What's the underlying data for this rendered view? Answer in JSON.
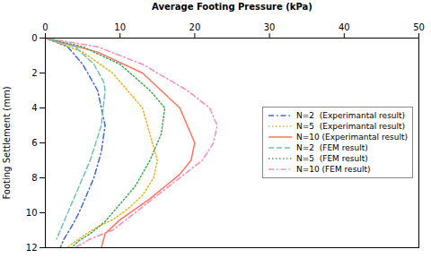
{
  "chart_data": {
    "type": "line",
    "xlabel": "Average Footing Pressure (kPa)",
    "ylabel": "Footing Settlement (mm)",
    "xlim": [
      0,
      50
    ],
    "ylim": [
      12,
      0
    ],
    "xticks": [
      0,
      10,
      20,
      30,
      40,
      50
    ],
    "yticks": [
      0,
      2,
      4,
      6,
      8,
      10,
      12
    ],
    "grid": false,
    "legend": "right",
    "series": [
      {
        "name": "N=2  (Experimantal result)",
        "line_style": "dashdot",
        "x": [
          0,
          3,
          5,
          7,
          8,
          7.5,
          6.5,
          5.5,
          4.5,
          3.5,
          2.5,
          2
        ],
        "values": [
          0,
          0.5,
          1.5,
          3,
          5,
          6.5,
          8,
          9,
          10,
          10.8,
          11.5,
          12
        ]
      },
      {
        "name": "N=5  (Experimantal result)",
        "line_style": "dotted",
        "x": [
          0,
          5,
          9,
          13,
          15,
          14.5,
          13,
          11,
          9,
          7,
          5.5,
          4.5,
          3.5,
          3
        ],
        "values": [
          0,
          0.8,
          2,
          4,
          7,
          8,
          9,
          9.8,
          10.4,
          10.8,
          11.2,
          11.5,
          11.8,
          12
        ]
      },
      {
        "name": "N=10 (Experimantal result)",
        "line_style": "solid",
        "x": [
          0,
          7,
          13,
          18,
          20,
          19.5,
          18,
          16,
          14,
          12,
          10,
          9,
          8,
          7.5
        ],
        "values": [
          0,
          0.8,
          2,
          4,
          6,
          7,
          7.8,
          8.5,
          9.2,
          9.8,
          10.4,
          10.8,
          11.2,
          12
        ]
      },
      {
        "name": "N=2  (FEM result)",
        "line_style": "dashed",
        "x": [
          0,
          4,
          6.5,
          7.8,
          8,
          7.5,
          6,
          4.5,
          3.5,
          2.5,
          2,
          1.5
        ],
        "values": [
          0,
          0.5,
          1.5,
          2.5,
          3,
          5,
          7,
          8.5,
          9.5,
          10.5,
          11,
          11.5
        ]
      },
      {
        "name": "N=5  (FEM result)",
        "line_style": "dotted",
        "x": [
          0,
          5,
          10,
          14,
          16,
          15.5,
          14,
          12,
          10,
          8,
          6,
          4.5,
          3.5
        ],
        "values": [
          0,
          0.5,
          1.5,
          3,
          4,
          5.5,
          7,
          8.5,
          9.5,
          10.5,
          11.2,
          11.6,
          12
        ]
      },
      {
        "name": "N=10 (FEM result)",
        "line_style": "dashdot",
        "x": [
          0,
          7,
          13,
          19,
          22,
          23,
          22.5,
          21,
          18,
          15,
          12,
          9,
          6,
          4
        ],
        "values": [
          0,
          0.5,
          1.5,
          3,
          4,
          5,
          6,
          7,
          8,
          9,
          10,
          11,
          11.5,
          12
        ]
      }
    ]
  }
}
